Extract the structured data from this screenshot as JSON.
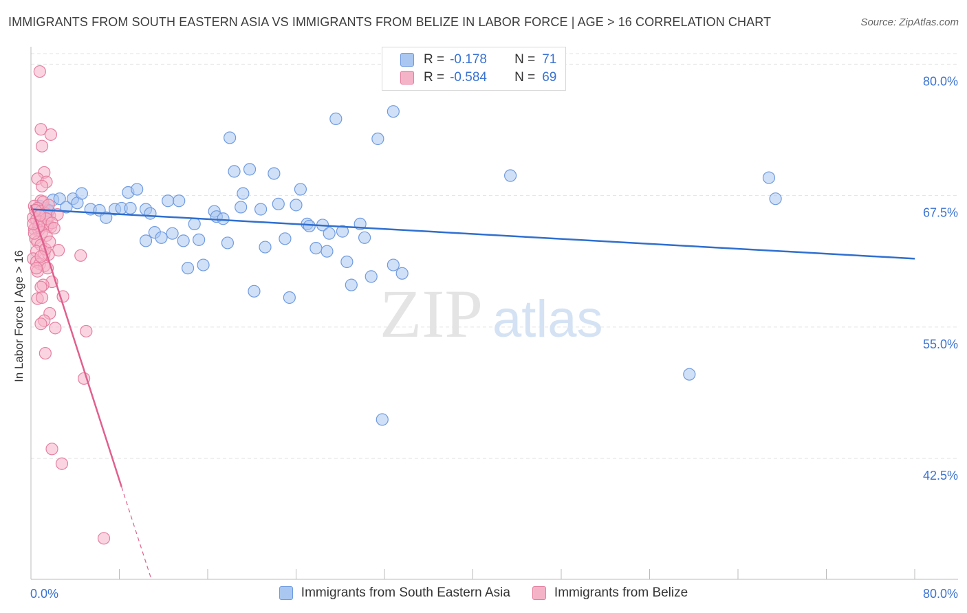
{
  "title": "IMMIGRANTS FROM SOUTH EASTERN ASIA VS IMMIGRANTS FROM BELIZE IN LABOR FORCE | AGE > 16 CORRELATION CHART",
  "source": "Source: ZipAtlas.com",
  "watermark": {
    "zip": "ZIP",
    "atlas": "atlas"
  },
  "legend": {
    "r_label": "R =",
    "n_label": "N =",
    "series": [
      {
        "r": "-0.178",
        "n": "71"
      },
      {
        "r": "-0.584",
        "n": "69"
      }
    ]
  },
  "colors": {
    "blue_fill": "#a9c7f0",
    "blue_stroke": "#6f9be0",
    "blue_line": "#2f6fcf",
    "pink_fill": "#f5b3c8",
    "pink_stroke": "#e57fa0",
    "pink_line": "#e0608e",
    "axis_text": "#3a73d1",
    "grid": "#e3e3e3"
  },
  "chart_data": {
    "type": "scatter",
    "title": "IMMIGRANTS FROM SOUTH EASTERN ASIA VS IMMIGRANTS FROM BELIZE IN LABOR FORCE | AGE > 16 CORRELATION CHART",
    "xlabel": "",
    "ylabel": "In Labor Force | Age > 16",
    "xlim": [
      0,
      80
    ],
    "ylim": [
      31,
      81.2
    ],
    "x_tick_labels": [
      "0.0%",
      "80.0%"
    ],
    "y_ticks": [
      42.5,
      55.0,
      67.5,
      80.0
    ],
    "y_tick_labels": [
      "42.5%",
      "55.0%",
      "67.5%",
      "80.0%"
    ],
    "grid": true,
    "series": [
      {
        "name": "Immigrants from South Eastern Asia",
        "color": "blue",
        "trend": {
          "x0": 0,
          "y0": 66.2,
          "x1": 80,
          "y1": 61.5
        },
        "points": [
          [
            1.2,
            66.3
          ],
          [
            1.6,
            66.0
          ],
          [
            2.0,
            67.1
          ],
          [
            2.6,
            67.2
          ],
          [
            3.2,
            66.4
          ],
          [
            3.8,
            67.2
          ],
          [
            4.2,
            66.8
          ],
          [
            4.6,
            67.7
          ],
          [
            5.4,
            66.2
          ],
          [
            6.2,
            66.1
          ],
          [
            6.8,
            65.4
          ],
          [
            7.6,
            66.2
          ],
          [
            8.2,
            66.3
          ],
          [
            8.8,
            67.8
          ],
          [
            9.0,
            66.3
          ],
          [
            9.6,
            68.1
          ],
          [
            10.4,
            66.2
          ],
          [
            10.8,
            65.8
          ],
          [
            10.4,
            63.2
          ],
          [
            11.2,
            64.0
          ],
          [
            11.8,
            63.5
          ],
          [
            12.4,
            67.0
          ],
          [
            12.8,
            63.9
          ],
          [
            13.4,
            67.0
          ],
          [
            13.8,
            63.2
          ],
          [
            14.2,
            60.6
          ],
          [
            14.8,
            64.8
          ],
          [
            15.2,
            63.3
          ],
          [
            15.6,
            60.9
          ],
          [
            16.6,
            66.0
          ],
          [
            16.8,
            65.5
          ],
          [
            17.4,
            65.3
          ],
          [
            17.8,
            63.0
          ],
          [
            18.0,
            73.0
          ],
          [
            18.4,
            69.8
          ],
          [
            19.0,
            66.4
          ],
          [
            19.2,
            67.7
          ],
          [
            19.8,
            70.0
          ],
          [
            20.2,
            58.4
          ],
          [
            20.8,
            66.2
          ],
          [
            21.2,
            62.6
          ],
          [
            22.0,
            69.6
          ],
          [
            22.4,
            66.7
          ],
          [
            23.0,
            63.4
          ],
          [
            23.4,
            57.8
          ],
          [
            24.0,
            66.6
          ],
          [
            24.4,
            68.1
          ],
          [
            25.0,
            64.8
          ],
          [
            25.2,
            64.6
          ],
          [
            25.8,
            62.5
          ],
          [
            26.4,
            64.7
          ],
          [
            26.8,
            62.2
          ],
          [
            27.0,
            63.9
          ],
          [
            27.6,
            74.8
          ],
          [
            28.2,
            64.1
          ],
          [
            28.6,
            61.2
          ],
          [
            29.0,
            59.0
          ],
          [
            29.8,
            64.8
          ],
          [
            30.2,
            63.5
          ],
          [
            30.8,
            59.8
          ],
          [
            31.4,
            72.9
          ],
          [
            31.8,
            46.2
          ],
          [
            32.8,
            75.5
          ],
          [
            32.8,
            60.9
          ],
          [
            33.6,
            60.1
          ],
          [
            43.4,
            69.4
          ],
          [
            59.6,
            50.5
          ],
          [
            66.8,
            69.2
          ],
          [
            67.4,
            67.2
          ],
          [
            0.8,
            66.5
          ],
          [
            1.6,
            66.1
          ]
        ]
      },
      {
        "name": "Immigrants from Belize",
        "color": "pink",
        "trend": {
          "x0": 0,
          "y0": 66.6,
          "x1": 8.2,
          "y1": 39.8,
          "dash_x1": 10.9,
          "dash_y1": 31.0
        },
        "points": [
          [
            0.8,
            79.3
          ],
          [
            0.9,
            73.8
          ],
          [
            1.0,
            72.2
          ],
          [
            1.8,
            73.3
          ],
          [
            1.2,
            69.7
          ],
          [
            0.6,
            69.1
          ],
          [
            1.4,
            68.8
          ],
          [
            1.0,
            68.4
          ],
          [
            0.9,
            67.0
          ],
          [
            1.1,
            66.9
          ],
          [
            0.3,
            66.5
          ],
          [
            0.6,
            66.3
          ],
          [
            0.9,
            66.0
          ],
          [
            1.3,
            65.8
          ],
          [
            1.7,
            65.6
          ],
          [
            2.4,
            65.7
          ],
          [
            0.2,
            65.4
          ],
          [
            0.5,
            65.2
          ],
          [
            0.8,
            65.0
          ],
          [
            1.1,
            64.8
          ],
          [
            1.5,
            64.6
          ],
          [
            1.8,
            64.5
          ],
          [
            0.3,
            64.3
          ],
          [
            0.7,
            64.2
          ],
          [
            1.0,
            64.0
          ],
          [
            1.4,
            63.7
          ],
          [
            0.4,
            63.4
          ],
          [
            0.6,
            63.1
          ],
          [
            0.9,
            62.8
          ],
          [
            0.5,
            62.2
          ],
          [
            2.5,
            62.3
          ],
          [
            1.2,
            61.9
          ],
          [
            1.6,
            61.9
          ],
          [
            4.5,
            61.8
          ],
          [
            0.2,
            61.5
          ],
          [
            0.5,
            61.2
          ],
          [
            0.8,
            61.0
          ],
          [
            1.2,
            60.8
          ],
          [
            1.5,
            60.6
          ],
          [
            0.6,
            60.3
          ],
          [
            1.9,
            59.3
          ],
          [
            1.1,
            59.0
          ],
          [
            0.9,
            58.8
          ],
          [
            2.9,
            57.9
          ],
          [
            0.6,
            57.7
          ],
          [
            1.0,
            57.8
          ],
          [
            1.7,
            56.3
          ],
          [
            1.2,
            55.6
          ],
          [
            0.9,
            55.3
          ],
          [
            2.2,
            54.9
          ],
          [
            5.0,
            54.6
          ],
          [
            1.3,
            52.5
          ],
          [
            4.8,
            50.1
          ],
          [
            1.9,
            43.4
          ],
          [
            2.8,
            42.0
          ],
          [
            6.6,
            34.9
          ],
          [
            1.4,
            65.3
          ],
          [
            0.4,
            66.1
          ],
          [
            0.7,
            64.6
          ],
          [
            1.9,
            64.9
          ],
          [
            0.3,
            63.9
          ],
          [
            1.6,
            66.6
          ],
          [
            0.8,
            65.6
          ],
          [
            2.1,
            64.4
          ],
          [
            0.5,
            60.6
          ],
          [
            1.3,
            62.4
          ],
          [
            0.2,
            64.8
          ],
          [
            1.7,
            63.1
          ],
          [
            0.9,
            61.7
          ]
        ]
      }
    ]
  }
}
